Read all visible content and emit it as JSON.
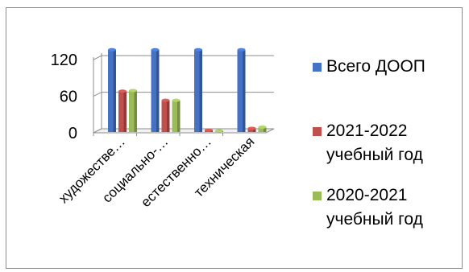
{
  "chart_data": {
    "type": "bar",
    "title": "",
    "xlabel": "",
    "ylabel": "",
    "categories": [
      "художестве…",
      "социально-…",
      "естественно…",
      "техническая"
    ],
    "series": [
      {
        "name": "Всего ДООП",
        "values": [
          135,
          135,
          135,
          135
        ],
        "color": "#4472C4"
      },
      {
        "name": "2021-2022 учебный год",
        "values": [
          67,
          52,
          3,
          6
        ],
        "color": "#C0504D"
      },
      {
        "name": "2020-2021 учебный год",
        "values": [
          68,
          52,
          2,
          8
        ],
        "color": "#9BBB59"
      }
    ],
    "yticks": [
      0,
      60,
      120
    ],
    "ylim": [
      0,
      140
    ],
    "grid": true,
    "legend": "right",
    "style": "3d-cylinder"
  },
  "legend": [
    {
      "label": "Всего ДООП",
      "color": "#4472C4"
    },
    {
      "label": "2021-2022\nучебный год",
      "color": "#C0504D"
    },
    {
      "label": "2020-2021\nучебный год",
      "color": "#9BBB59"
    }
  ]
}
